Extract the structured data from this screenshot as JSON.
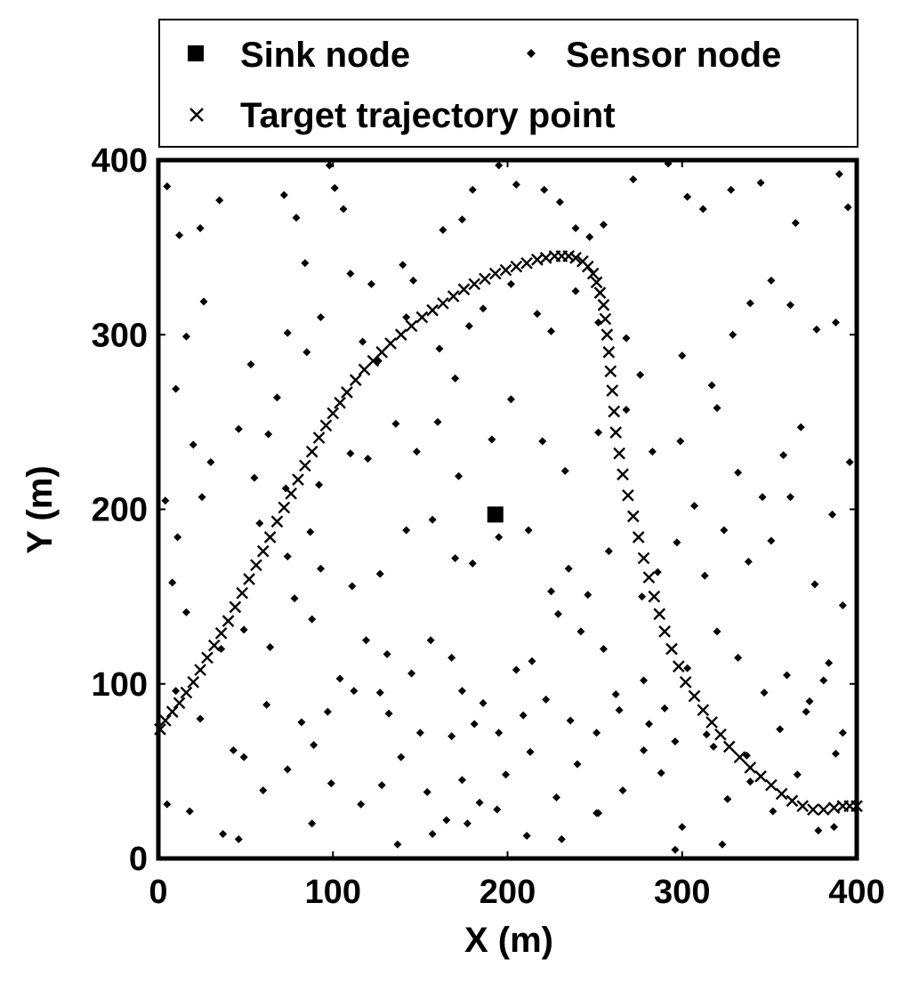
{
  "chart_data": {
    "type": "scatter",
    "xlabel": "X (m)",
    "ylabel": "Y (m)",
    "xlim": [
      0,
      400
    ],
    "ylim": [
      0,
      400
    ],
    "xticks": [
      "0",
      "100",
      "200",
      "300",
      "400"
    ],
    "yticks": [
      "0",
      "100",
      "200",
      "300",
      "400"
    ],
    "grid": false,
    "legend_position": "top, outside plot",
    "legend": {
      "sink": "Sink node",
      "sensor": "Sensor node",
      "target": "Target trajectory point"
    },
    "series": [
      {
        "name": "Sink node",
        "marker": "square",
        "points": [
          [
            193,
            197
          ]
        ]
      },
      {
        "name": "Sensor node",
        "marker": "diamond",
        "points": [
          [
            5,
            385
          ],
          [
            12,
            357
          ],
          [
            20,
            237
          ],
          [
            24,
            361
          ],
          [
            35,
            377
          ],
          [
            72,
            380
          ],
          [
            79,
            367
          ],
          [
            84,
            341
          ],
          [
            98,
            397
          ],
          [
            101,
            384
          ],
          [
            106,
            372
          ],
          [
            110,
            335
          ],
          [
            122,
            329
          ],
          [
            140,
            340
          ],
          [
            146,
            331
          ],
          [
            163,
            360
          ],
          [
            174,
            366
          ],
          [
            180,
            383
          ],
          [
            195,
            397
          ],
          [
            205,
            386
          ],
          [
            221,
            383
          ],
          [
            230,
            376
          ],
          [
            239,
            361
          ],
          [
            247,
            356
          ],
          [
            255,
            363
          ],
          [
            272,
            389
          ],
          [
            292,
            398
          ],
          [
            303,
            379
          ],
          [
            312,
            372
          ],
          [
            328,
            383
          ],
          [
            345,
            387
          ],
          [
            365,
            364
          ],
          [
            390,
            392
          ],
          [
            395,
            373
          ],
          [
            16,
            299
          ],
          [
            26,
            319
          ],
          [
            53,
            283
          ],
          [
            68,
            264
          ],
          [
            74,
            301
          ],
          [
            85,
            290
          ],
          [
            93,
            310
          ],
          [
            117,
            296
          ],
          [
            126,
            285
          ],
          [
            142,
            310
          ],
          [
            161,
            292
          ],
          [
            170,
            275
          ],
          [
            178,
            305
          ],
          [
            186,
            315
          ],
          [
            202,
            329
          ],
          [
            217,
            312
          ],
          [
            225,
            302
          ],
          [
            239,
            325
          ],
          [
            252,
            307
          ],
          [
            268,
            298
          ],
          [
            276,
            277
          ],
          [
            300,
            288
          ],
          [
            317,
            271
          ],
          [
            329,
            300
          ],
          [
            339,
            318
          ],
          [
            351,
            331
          ],
          [
            362,
            317
          ],
          [
            377,
            303
          ],
          [
            388,
            307
          ],
          [
            10,
            269
          ],
          [
            30,
            227
          ],
          [
            46,
            246
          ],
          [
            55,
            218
          ],
          [
            63,
            243
          ],
          [
            73,
            212
          ],
          [
            92,
            214
          ],
          [
            110,
            232
          ],
          [
            120,
            229
          ],
          [
            136,
            249
          ],
          [
            148,
            233
          ],
          [
            160,
            250
          ],
          [
            172,
            219
          ],
          [
            191,
            240
          ],
          [
            202,
            263
          ],
          [
            220,
            239
          ],
          [
            233,
            222
          ],
          [
            252,
            244
          ],
          [
            268,
            257
          ],
          [
            283,
            233
          ],
          [
            299,
            239
          ],
          [
            307,
            202
          ],
          [
            320,
            258
          ],
          [
            332,
            221
          ],
          [
            346,
            207
          ],
          [
            358,
            231
          ],
          [
            368,
            247
          ],
          [
            386,
            197
          ],
          [
            396,
            227
          ],
          [
            4,
            205
          ],
          [
            11,
            184
          ],
          [
            25,
            207
          ],
          [
            58,
            192
          ],
          [
            74,
            173
          ],
          [
            87,
            187
          ],
          [
            93,
            166
          ],
          [
            111,
            156
          ],
          [
            127,
            163
          ],
          [
            142,
            188
          ],
          [
            157,
            194
          ],
          [
            170,
            172
          ],
          [
            180,
            169
          ],
          [
            195,
            184
          ],
          [
            212,
            188
          ],
          [
            225,
            153
          ],
          [
            235,
            166
          ],
          [
            246,
            151
          ],
          [
            258,
            176
          ],
          [
            277,
            150
          ],
          [
            286,
            164
          ],
          [
            297,
            181
          ],
          [
            313,
            162
          ],
          [
            324,
            188
          ],
          [
            338,
            170
          ],
          [
            351,
            182
          ],
          [
            362,
            207
          ],
          [
            376,
            157
          ],
          [
            392,
            145
          ],
          [
            8,
            158
          ],
          [
            16,
            141
          ],
          [
            36,
            120
          ],
          [
            49,
            131
          ],
          [
            64,
            121
          ],
          [
            78,
            149
          ],
          [
            88,
            137
          ],
          [
            104,
            103
          ],
          [
            119,
            125
          ],
          [
            131,
            117
          ],
          [
            145,
            106
          ],
          [
            156,
            125
          ],
          [
            168,
            115
          ],
          [
            174,
            96
          ],
          [
            186,
            89
          ],
          [
            205,
            108
          ],
          [
            214,
            113
          ],
          [
            229,
            140
          ],
          [
            242,
            130
          ],
          [
            255,
            120
          ],
          [
            262,
            94
          ],
          [
            278,
            102
          ],
          [
            290,
            86
          ],
          [
            303,
            109
          ],
          [
            320,
            130
          ],
          [
            332,
            115
          ],
          [
            347,
            95
          ],
          [
            360,
            105
          ],
          [
            371,
            84
          ],
          [
            381,
            102
          ],
          [
            392,
            72
          ],
          [
            5,
            31
          ],
          [
            18,
            27
          ],
          [
            37,
            14
          ],
          [
            49,
            58
          ],
          [
            60,
            39
          ],
          [
            74,
            51
          ],
          [
            89,
            65
          ],
          [
            99,
            43
          ],
          [
            116,
            31
          ],
          [
            128,
            42
          ],
          [
            139,
            58
          ],
          [
            154,
            38
          ],
          [
            165,
            22
          ],
          [
            174,
            45
          ],
          [
            184,
            32
          ],
          [
            199,
            48
          ],
          [
            213,
            61
          ],
          [
            228,
            35
          ],
          [
            240,
            54
          ],
          [
            252,
            26
          ],
          [
            266,
            39
          ],
          [
            278,
            62
          ],
          [
            288,
            49
          ],
          [
            300,
            18
          ],
          [
            314,
            71
          ],
          [
            326,
            34
          ],
          [
            339,
            44
          ],
          [
            352,
            27
          ],
          [
            366,
            48
          ],
          [
            378,
            16
          ],
          [
            388,
            60
          ],
          [
            46,
            11
          ],
          [
            88,
            20
          ],
          [
            137,
            8
          ],
          [
            157,
            14
          ],
          [
            177,
            20
          ],
          [
            194,
            28
          ],
          [
            211,
            13
          ],
          [
            231,
            11
          ],
          [
            251,
            26
          ],
          [
            296,
            5
          ],
          [
            323,
            8
          ],
          [
            387,
            18
          ],
          [
            10,
            96
          ],
          [
            24,
            80
          ],
          [
            43,
            62
          ],
          [
            62,
            88
          ],
          [
            82,
            78
          ],
          [
            97,
            84
          ],
          [
            112,
            96
          ],
          [
            127,
            95
          ],
          [
            132,
            83
          ],
          [
            150,
            72
          ],
          [
            168,
            70
          ],
          [
            181,
            77
          ],
          [
            195,
            72
          ],
          [
            209,
            82
          ],
          [
            222,
            91
          ],
          [
            236,
            79
          ],
          [
            251,
            72
          ],
          [
            264,
            85
          ],
          [
            281,
            77
          ],
          [
            296,
            67
          ],
          [
            318,
            64
          ],
          [
            337,
            59
          ],
          [
            356,
            74
          ],
          [
            373,
            90
          ],
          [
            384,
            112
          ]
        ]
      },
      {
        "name": "Target trajectory point",
        "marker": "x",
        "points": [
          [
            1,
            74
          ],
          [
            4,
            79
          ],
          [
            8,
            84
          ],
          [
            12,
            89
          ],
          [
            16,
            95
          ],
          [
            20,
            101
          ],
          [
            24,
            108
          ],
          [
            28,
            115
          ],
          [
            32,
            122
          ],
          [
            36,
            129
          ],
          [
            40,
            136
          ],
          [
            44,
            144
          ],
          [
            48,
            152
          ],
          [
            52,
            160
          ],
          [
            56,
            168
          ],
          [
            60,
            176
          ],
          [
            64,
            184
          ],
          [
            68,
            193
          ],
          [
            72,
            201
          ],
          [
            76,
            209
          ],
          [
            80,
            217
          ],
          [
            84,
            225
          ],
          [
            88,
            233
          ],
          [
            92,
            241
          ],
          [
            96,
            248
          ],
          [
            100,
            255
          ],
          [
            104,
            261
          ],
          [
            108,
            267
          ],
          [
            113,
            274
          ],
          [
            118,
            280
          ],
          [
            123,
            285
          ],
          [
            128,
            290
          ],
          [
            133,
            295
          ],
          [
            139,
            300
          ],
          [
            145,
            305
          ],
          [
            151,
            310
          ],
          [
            157,
            314
          ],
          [
            163,
            318
          ],
          [
            169,
            322
          ],
          [
            175,
            326
          ],
          [
            181,
            329
          ],
          [
            187,
            332
          ],
          [
            193,
            335
          ],
          [
            199,
            337
          ],
          [
            205,
            339
          ],
          [
            211,
            341
          ],
          [
            217,
            343
          ],
          [
            222,
            344
          ],
          [
            227,
            345
          ],
          [
            231,
            345
          ],
          [
            235,
            345
          ],
          [
            239,
            344
          ],
          [
            243,
            342
          ],
          [
            246,
            339
          ],
          [
            249,
            335
          ],
          [
            251,
            330
          ],
          [
            253,
            324
          ],
          [
            255,
            317
          ],
          [
            256,
            309
          ],
          [
            257,
            300
          ],
          [
            258,
            290
          ],
          [
            259,
            279
          ],
          [
            260,
            268
          ],
          [
            261,
            256
          ],
          [
            262,
            244
          ],
          [
            264,
            232
          ],
          [
            266,
            220
          ],
          [
            269,
            208
          ],
          [
            272,
            196
          ],
          [
            275,
            184
          ],
          [
            278,
            172
          ],
          [
            281,
            161
          ],
          [
            284,
            150
          ],
          [
            287,
            140
          ],
          [
            290,
            130
          ],
          [
            294,
            120
          ],
          [
            298,
            110
          ],
          [
            302,
            101
          ],
          [
            307,
            93
          ],
          [
            312,
            85
          ],
          [
            317,
            78
          ],
          [
            322,
            71
          ],
          [
            327,
            64
          ],
          [
            333,
            58
          ],
          [
            339,
            52
          ],
          [
            345,
            47
          ],
          [
            351,
            42
          ],
          [
            357,
            37
          ],
          [
            363,
            33
          ],
          [
            369,
            30
          ],
          [
            375,
            28
          ],
          [
            381,
            28
          ],
          [
            387,
            29
          ],
          [
            392,
            30
          ],
          [
            396,
            30
          ],
          [
            400,
            30
          ]
        ]
      }
    ]
  }
}
